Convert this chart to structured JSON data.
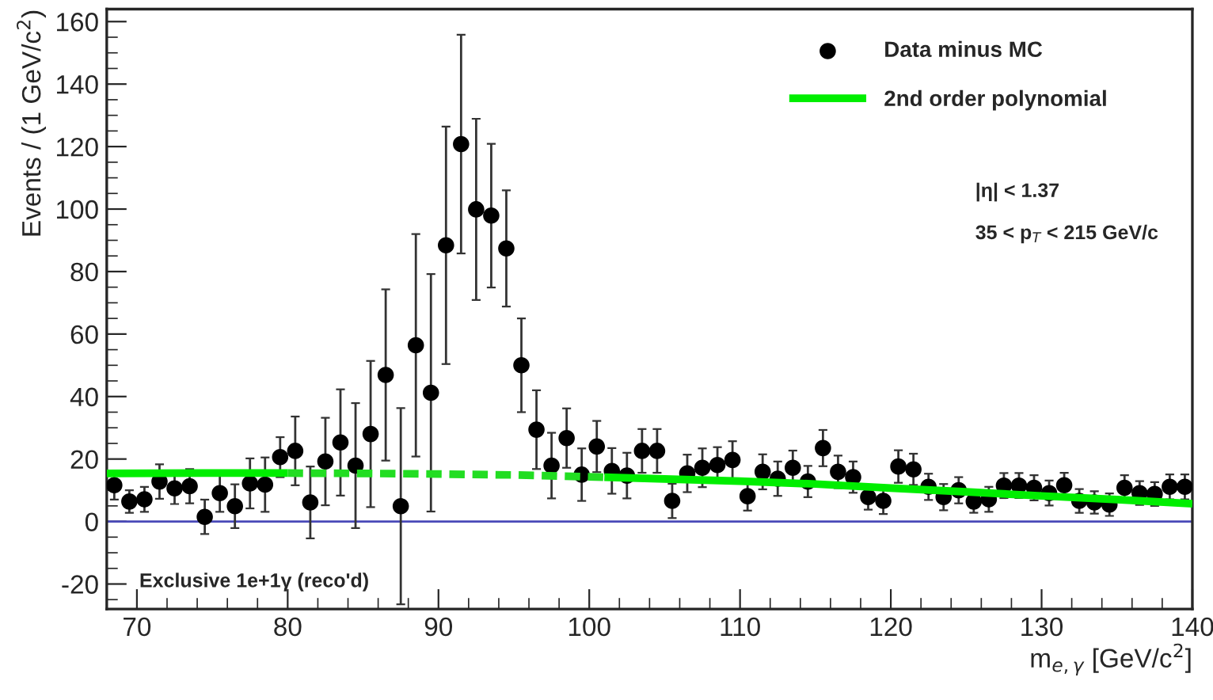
{
  "chart_data": {
    "type": "scatter",
    "xlabel": "m$_{e,γ}$ [GeV/c$^{2}$]",
    "ylabel": "Events / (1 GeV/c$^{2}$)",
    "xlim": [
      68,
      140
    ],
    "ylim": [
      -28,
      164
    ],
    "xticks": [
      70,
      80,
      90,
      100,
      110,
      120,
      130,
      140
    ],
    "yticks": [
      -20,
      0,
      20,
      40,
      60,
      80,
      100,
      120,
      140,
      160
    ],
    "grid": false,
    "legend": "top right",
    "ref_lines": [
      {
        "axis": "y",
        "value": 0,
        "color": "#4a4ab8",
        "line_style": "solid"
      }
    ],
    "annotations": [
      {
        "text": "|η| < 1.37"
      },
      {
        "text": "35 < p$_{T}$ < 215 GeV/c"
      },
      {
        "text": "Exclusive 1e+1γ (reco'd)"
      }
    ],
    "series": [
      {
        "name": "Data minus MC",
        "color": "#000000",
        "marker": "circle",
        "x": [
          68.5,
          69.5,
          70.5,
          71.5,
          72.5,
          73.5,
          74.5,
          75.5,
          76.5,
          77.5,
          78.5,
          79.5,
          80.5,
          81.5,
          82.5,
          83.5,
          84.5,
          85.5,
          86.5,
          87.5,
          88.5,
          89.5,
          90.5,
          91.5,
          92.5,
          93.5,
          94.5,
          95.5,
          96.5,
          97.5,
          98.5,
          99.5,
          100.5,
          101.5,
          102.5,
          103.5,
          104.5,
          105.5,
          106.5,
          107.5,
          108.5,
          109.5,
          110.5,
          111.5,
          112.5,
          113.5,
          114.5,
          115.5,
          116.5,
          117.5,
          118.5,
          119.5,
          120.5,
          121.5,
          122.5,
          123.5,
          124.5,
          125.5,
          126.5,
          127.5,
          128.5,
          129.5,
          130.5,
          131.5,
          132.5,
          133.5,
          134.5,
          135.5,
          136.5,
          137.5,
          138.5,
          139.5
        ],
        "values": [
          11.6,
          6.4,
          7.1,
          12.8,
          10.6,
          11.3,
          1.5,
          9.1,
          4.9,
          12.2,
          11.8,
          20.6,
          22.6,
          6.1,
          19.2,
          25.3,
          17.9,
          28,
          46.9,
          4.9,
          56.4,
          41.2,
          88.4,
          120.8,
          99.9,
          97.9,
          87.4,
          50,
          29.4,
          17.9,
          26.7,
          15,
          24,
          16.2,
          14.7,
          22.6,
          22.6,
          6.6,
          15.4,
          17.2,
          18.1,
          19.7,
          8.1,
          15.9,
          13.7,
          17.2,
          12.8,
          23.5,
          15.9,
          14.2,
          7.8,
          6.6,
          17.6,
          16.7,
          11.1,
          7.8,
          10,
          6.4,
          7.1,
          11.5,
          11.5,
          10.8,
          9.1,
          11.6,
          6.6,
          6.1,
          5.4,
          10.8,
          9.1,
          8.8,
          11.1,
          11.1
        ],
        "errors": [
          4.6,
          3.6,
          4,
          5.5,
          5,
          5.5,
          5.5,
          6,
          7,
          8,
          8.7,
          6.4,
          11,
          11.5,
          14,
          17,
          20,
          23.4,
          27.4,
          31.4,
          35.6,
          38,
          38,
          35,
          29,
          23,
          18.6,
          15,
          12.6,
          10.5,
          9.5,
          8.4,
          8.2,
          7.3,
          7.3,
          7,
          7,
          5.5,
          6,
          6.2,
          5.7,
          6,
          4.6,
          5.6,
          5.5,
          5.5,
          5,
          5.8,
          5.2,
          5,
          4,
          4.2,
          5.2,
          5,
          4.2,
          4.2,
          4.2,
          3.6,
          4,
          4,
          4,
          4,
          4,
          4,
          3.8,
          3.6,
          3.6,
          4,
          3.8,
          3.8,
          4,
          4
        ]
      },
      {
        "name": "2nd order polynomial",
        "type": "line",
        "color": "#00ee00",
        "line_style": "solid",
        "x": [
          68,
          75,
          80,
          90,
          101,
          105,
          110,
          115,
          120,
          125,
          130,
          135,
          140
        ],
        "values": [
          15.4,
          15.5,
          15.5,
          null,
          14.2,
          13.6,
          12.9,
          12,
          10.7,
          9.5,
          8.2,
          7,
          5.7
        ]
      },
      {
        "type": "line",
        "color": "#22dd22",
        "line_style": "dashed",
        "x": [
          80,
          85,
          90,
          95,
          101
        ],
        "values": [
          15.5,
          15.4,
          15.2,
          14.9,
          14.2
        ]
      }
    ]
  }
}
